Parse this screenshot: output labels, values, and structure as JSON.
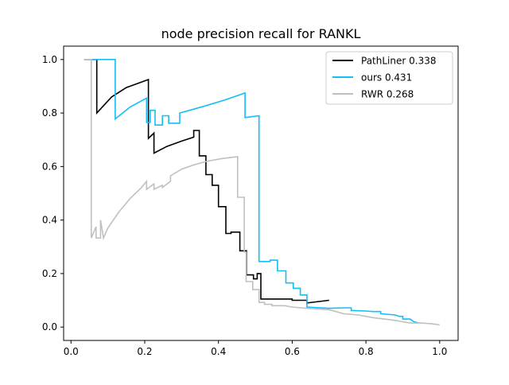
{
  "chart_data": {
    "type": "line",
    "title": "node precision recall for RANKL",
    "xlabel": "",
    "ylabel": "",
    "xlim": [
      -0.02,
      1.05
    ],
    "ylim": [
      -0.05,
      1.05
    ],
    "xticks": [
      "0.0",
      "0.2",
      "0.4",
      "0.6",
      "0.8",
      "1.0"
    ],
    "yticks": [
      "0.0",
      "0.2",
      "0.4",
      "0.6",
      "0.8",
      "1.0"
    ],
    "grid": false,
    "legend_position": "top-right",
    "series": [
      {
        "name": "PathLiner 0.338",
        "color": "#000000",
        "x": [
          0.035,
          0.07,
          0.07,
          0.11,
          0.15,
          0.19,
          0.21,
          0.21,
          0.225,
          0.225,
          0.26,
          0.3,
          0.333,
          0.333,
          0.348,
          0.348,
          0.366,
          0.366,
          0.383,
          0.383,
          0.4,
          0.4,
          0.42,
          0.42,
          0.434,
          0.434,
          0.458,
          0.458,
          0.476,
          0.476,
          0.495,
          0.495,
          0.505,
          0.505,
          0.515,
          0.515,
          0.56,
          0.56,
          0.6,
          0.6,
          0.64,
          0.64,
          0.7
        ],
        "y": [
          1.0,
          1.0,
          0.8,
          0.86,
          0.895,
          0.915,
          0.925,
          0.705,
          0.725,
          0.65,
          0.675,
          0.695,
          0.71,
          0.735,
          0.735,
          0.64,
          0.64,
          0.57,
          0.57,
          0.53,
          0.53,
          0.45,
          0.45,
          0.35,
          0.35,
          0.355,
          0.355,
          0.285,
          0.285,
          0.195,
          0.195,
          0.18,
          0.18,
          0.2,
          0.2,
          0.105,
          0.105,
          0.105,
          0.105,
          0.1,
          0.1,
          0.09,
          0.1
        ]
      },
      {
        "name": "ours 0.431",
        "color": "#13bff5",
        "x": [
          0.035,
          0.12,
          0.12,
          0.16,
          0.205,
          0.205,
          0.215,
          0.215,
          0.228,
          0.228,
          0.248,
          0.248,
          0.265,
          0.265,
          0.295,
          0.295,
          0.36,
          0.42,
          0.472,
          0.472,
          0.51,
          0.51,
          0.54,
          0.54,
          0.56,
          0.56,
          0.583,
          0.583,
          0.603,
          0.603,
          0.622,
          0.622,
          0.64,
          0.64,
          0.7,
          0.74,
          0.76,
          0.76,
          0.8,
          0.82,
          0.84,
          0.84,
          0.88,
          0.89,
          0.9,
          0.9,
          0.92,
          0.93,
          0.945
        ],
        "y": [
          1.0,
          1.0,
          0.778,
          0.822,
          0.856,
          0.765,
          0.765,
          0.81,
          0.81,
          0.755,
          0.755,
          0.79,
          0.79,
          0.762,
          0.762,
          0.8,
          0.825,
          0.85,
          0.875,
          0.783,
          0.79,
          0.245,
          0.245,
          0.25,
          0.25,
          0.21,
          0.21,
          0.165,
          0.165,
          0.145,
          0.145,
          0.12,
          0.12,
          0.075,
          0.07,
          0.072,
          0.072,
          0.062,
          0.06,
          0.058,
          0.058,
          0.05,
          0.045,
          0.04,
          0.04,
          0.03,
          0.03,
          0.02,
          0.015
        ]
      },
      {
        "name": "RWR 0.268",
        "color": "#c0c0c0",
        "x": [
          0.035,
          0.055,
          0.055,
          0.068,
          0.068,
          0.08,
          0.08,
          0.088,
          0.1,
          0.13,
          0.16,
          0.19,
          0.205,
          0.205,
          0.225,
          0.225,
          0.248,
          0.248,
          0.27,
          0.27,
          0.3,
          0.33,
          0.37,
          0.41,
          0.452,
          0.452,
          0.47,
          0.47,
          0.475,
          0.475,
          0.493,
          0.493,
          0.51,
          0.51,
          0.525,
          0.525,
          0.545,
          0.545,
          0.58,
          0.6,
          0.64,
          0.7,
          0.74,
          0.78,
          0.8,
          0.82,
          0.85,
          0.88,
          0.9,
          0.92,
          0.95,
          0.98,
          1.0
        ],
        "y": [
          1.0,
          1.0,
          0.333,
          0.375,
          0.333,
          0.333,
          0.4,
          0.333,
          0.37,
          0.43,
          0.48,
          0.52,
          0.545,
          0.515,
          0.535,
          0.515,
          0.53,
          0.522,
          0.545,
          0.565,
          0.59,
          0.605,
          0.62,
          0.63,
          0.637,
          0.485,
          0.485,
          0.28,
          0.28,
          0.17,
          0.17,
          0.14,
          0.14,
          0.092,
          0.092,
          0.085,
          0.085,
          0.08,
          0.08,
          0.075,
          0.07,
          0.065,
          0.05,
          0.045,
          0.04,
          0.035,
          0.03,
          0.025,
          0.02,
          0.015,
          0.015,
          0.012,
          0.008
        ]
      }
    ]
  }
}
